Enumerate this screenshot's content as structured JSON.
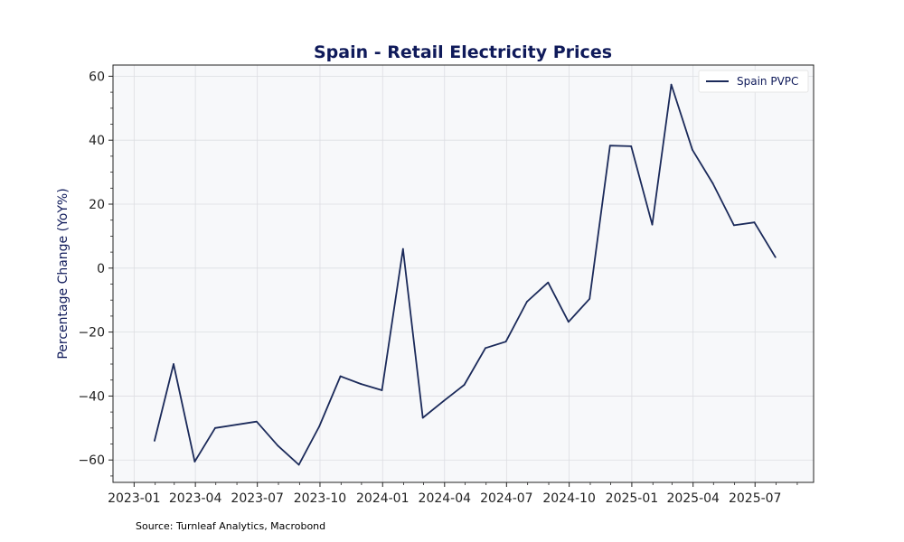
{
  "chart_data": {
    "type": "line",
    "title": "Spain - Retail Electricity Prices",
    "xlabel": "",
    "ylabel": "Percentage Change (YoY%)",
    "ylim": [
      -67,
      63.5
    ],
    "xlim": [
      "2022-12-01",
      "2025-09-25"
    ],
    "grid": true,
    "legend_position": "top-right",
    "x_ticks": [
      "2023-01",
      "2023-04",
      "2023-07",
      "2023-10",
      "2024-01",
      "2024-04",
      "2024-07",
      "2024-10",
      "2025-01",
      "2025-04",
      "2025-07"
    ],
    "y_ticks": [
      60,
      40,
      20,
      0,
      -20,
      -40,
      -60
    ],
    "series": [
      {
        "name": "Spain PVPC",
        "color": "#1b2a5a",
        "points": [
          {
            "x": "2023-01-31",
            "y": -54
          },
          {
            "x": "2023-02-28",
            "y": -30
          },
          {
            "x": "2023-03-31",
            "y": -60.5
          },
          {
            "x": "2023-04-30",
            "y": -50
          },
          {
            "x": "2023-06-30",
            "y": -48
          },
          {
            "x": "2023-07-31",
            "y": -55.5
          },
          {
            "x": "2023-08-31",
            "y": -61.5
          },
          {
            "x": "2023-09-30",
            "y": -49.5
          },
          {
            "x": "2023-10-31",
            "y": -33.8
          },
          {
            "x": "2023-11-30",
            "y": -36.2
          },
          {
            "x": "2023-12-31",
            "y": -38.2
          },
          {
            "x": "2024-01-31",
            "y": 6
          },
          {
            "x": "2024-02-29",
            "y": -46.8
          },
          {
            "x": "2024-03-31",
            "y": -41.5
          },
          {
            "x": "2024-04-30",
            "y": -36.5
          },
          {
            "x": "2024-05-31",
            "y": -25
          },
          {
            "x": "2024-06-30",
            "y": -23
          },
          {
            "x": "2024-07-31",
            "y": -10.5
          },
          {
            "x": "2024-08-31",
            "y": -4.5
          },
          {
            "x": "2024-09-30",
            "y": -16.8
          },
          {
            "x": "2024-10-31",
            "y": -9.6
          },
          {
            "x": "2024-11-30",
            "y": 38.3
          },
          {
            "x": "2024-12-31",
            "y": 38.1
          },
          {
            "x": "2025-01-31",
            "y": 13.6
          },
          {
            "x": "2025-02-28",
            "y": 57.4
          },
          {
            "x": "2025-03-31",
            "y": 37
          },
          {
            "x": "2025-04-30",
            "y": 26.5
          },
          {
            "x": "2025-05-31",
            "y": 13.4
          },
          {
            "x": "2025-06-30",
            "y": 14.3
          },
          {
            "x": "2025-07-31",
            "y": 3.4
          }
        ]
      }
    ],
    "source": "Source: Turnleaf Analytics, Macrobond"
  }
}
